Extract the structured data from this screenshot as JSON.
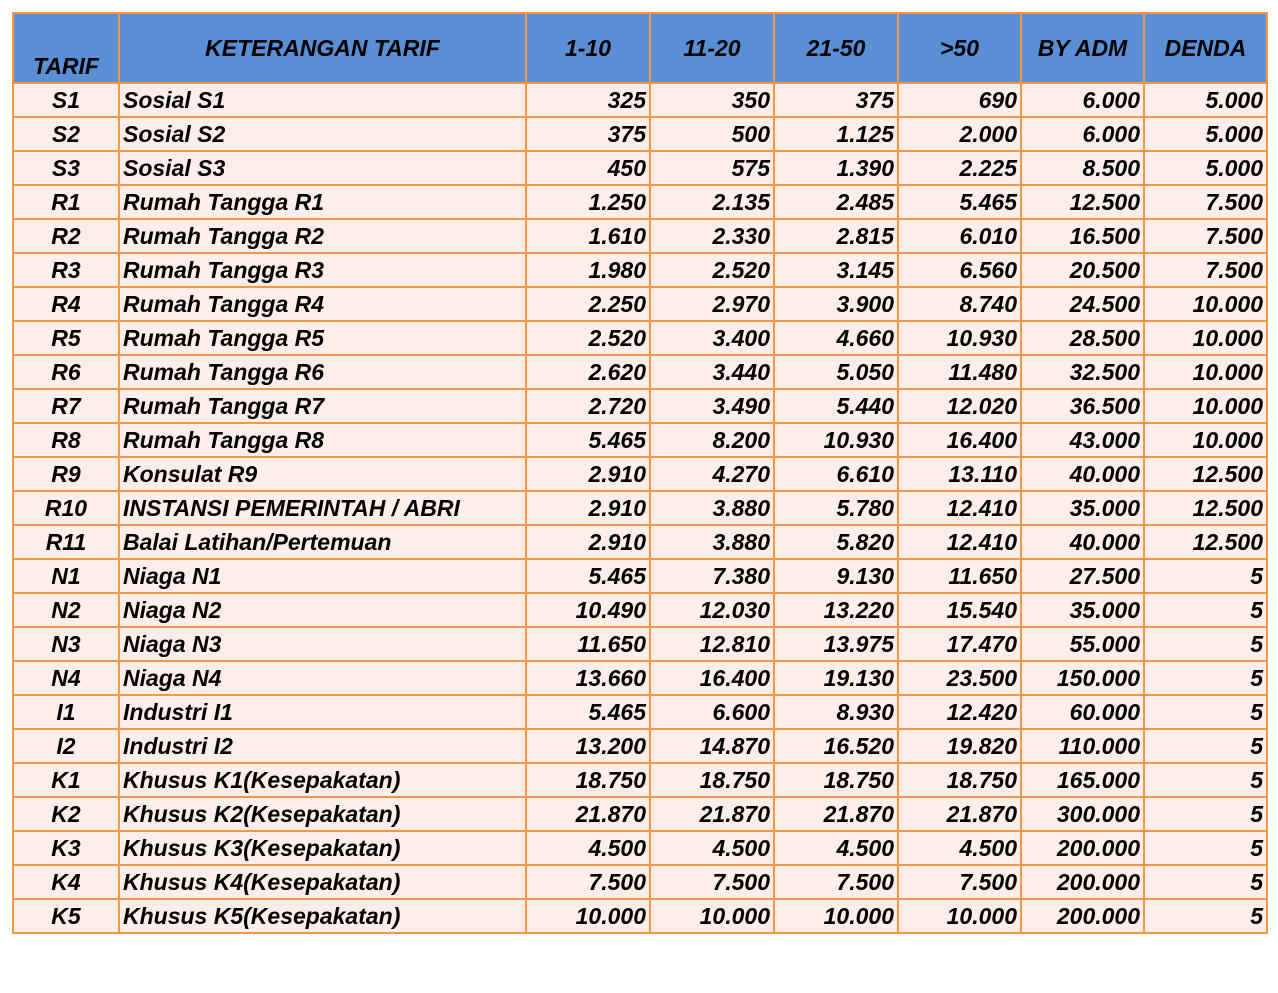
{
  "table": {
    "header": [
      "TARIF",
      "KETERANGAN TARIF",
      "1-10",
      "11-20",
      "21-50",
      ">50",
      "BY ADM",
      "DENDA"
    ],
    "rows": [
      [
        "S1",
        "Sosial S1",
        "325",
        "350",
        "375",
        "690",
        "6.000",
        "5.000"
      ],
      [
        "S2",
        "Sosial S2",
        "375",
        "500",
        "1.125",
        "2.000",
        "6.000",
        "5.000"
      ],
      [
        "S3",
        "Sosial S3",
        "450",
        "575",
        "1.390",
        "2.225",
        "8.500",
        "5.000"
      ],
      [
        "R1",
        "Rumah Tangga R1",
        "1.250",
        "2.135",
        "2.485",
        "5.465",
        "12.500",
        "7.500"
      ],
      [
        "R2",
        "Rumah Tangga R2",
        "1.610",
        "2.330",
        "2.815",
        "6.010",
        "16.500",
        "7.500"
      ],
      [
        "R3",
        "Rumah Tangga R3",
        "1.980",
        "2.520",
        "3.145",
        "6.560",
        "20.500",
        "7.500"
      ],
      [
        "R4",
        "Rumah Tangga R4",
        "2.250",
        "2.970",
        "3.900",
        "8.740",
        "24.500",
        "10.000"
      ],
      [
        "R5",
        "Rumah Tangga R5",
        "2.520",
        "3.400",
        "4.660",
        "10.930",
        "28.500",
        "10.000"
      ],
      [
        "R6",
        "Rumah Tangga R6",
        "2.620",
        "3.440",
        "5.050",
        "11.480",
        "32.500",
        "10.000"
      ],
      [
        "R7",
        "Rumah Tangga R7",
        "2.720",
        "3.490",
        "5.440",
        "12.020",
        "36.500",
        "10.000"
      ],
      [
        "R8",
        "Rumah Tangga R8",
        "5.465",
        "8.200",
        "10.930",
        "16.400",
        "43.000",
        "10.000"
      ],
      [
        "R9",
        "Konsulat R9",
        "2.910",
        "4.270",
        "6.610",
        "13.110",
        "40.000",
        "12.500"
      ],
      [
        "R10",
        "INSTANSI PEMERINTAH / ABRI",
        "2.910",
        "3.880",
        "5.780",
        "12.410",
        "35.000",
        "12.500"
      ],
      [
        "R11",
        "Balai Latihan/Pertemuan",
        "2.910",
        "3.880",
        "5.820",
        "12.410",
        "40.000",
        "12.500"
      ],
      [
        "N1",
        "Niaga N1",
        "5.465",
        "7.380",
        "9.130",
        "11.650",
        "27.500",
        "5"
      ],
      [
        "N2",
        "Niaga N2",
        "10.490",
        "12.030",
        "13.220",
        "15.540",
        "35.000",
        "5"
      ],
      [
        "N3",
        "Niaga N3",
        "11.650",
        "12.810",
        "13.975",
        "17.470",
        "55.000",
        "5"
      ],
      [
        "N4",
        "Niaga N4",
        "13.660",
        "16.400",
        "19.130",
        "23.500",
        "150.000",
        "5"
      ],
      [
        "I1",
        "Industri I1",
        "5.465",
        "6.600",
        "8.930",
        "12.420",
        "60.000",
        "5"
      ],
      [
        "I2",
        "Industri I2",
        "13.200",
        "14.870",
        "16.520",
        "19.820",
        "110.000",
        "5"
      ],
      [
        "K1",
        "Khusus K1(Kesepakatan)",
        "18.750",
        "18.750",
        "18.750",
        "18.750",
        "165.000",
        "5"
      ],
      [
        "K2",
        "Khusus K2(Kesepakatan)",
        "21.870",
        "21.870",
        "21.870",
        "21.870",
        "300.000",
        "5"
      ],
      [
        "K3",
        "Khusus K3(Kesepakatan)",
        "4.500",
        "4.500",
        "4.500",
        "4.500",
        "200.000",
        "5"
      ],
      [
        "K4",
        "Khusus K4(Kesepakatan)",
        "7.500",
        "7.500",
        "7.500",
        "7.500",
        "200.000",
        "5"
      ],
      [
        "K5",
        "Khusus K5(Kesepakatan)",
        "10.000",
        "10.000",
        "10.000",
        "10.000",
        "200.000",
        "5"
      ]
    ]
  }
}
